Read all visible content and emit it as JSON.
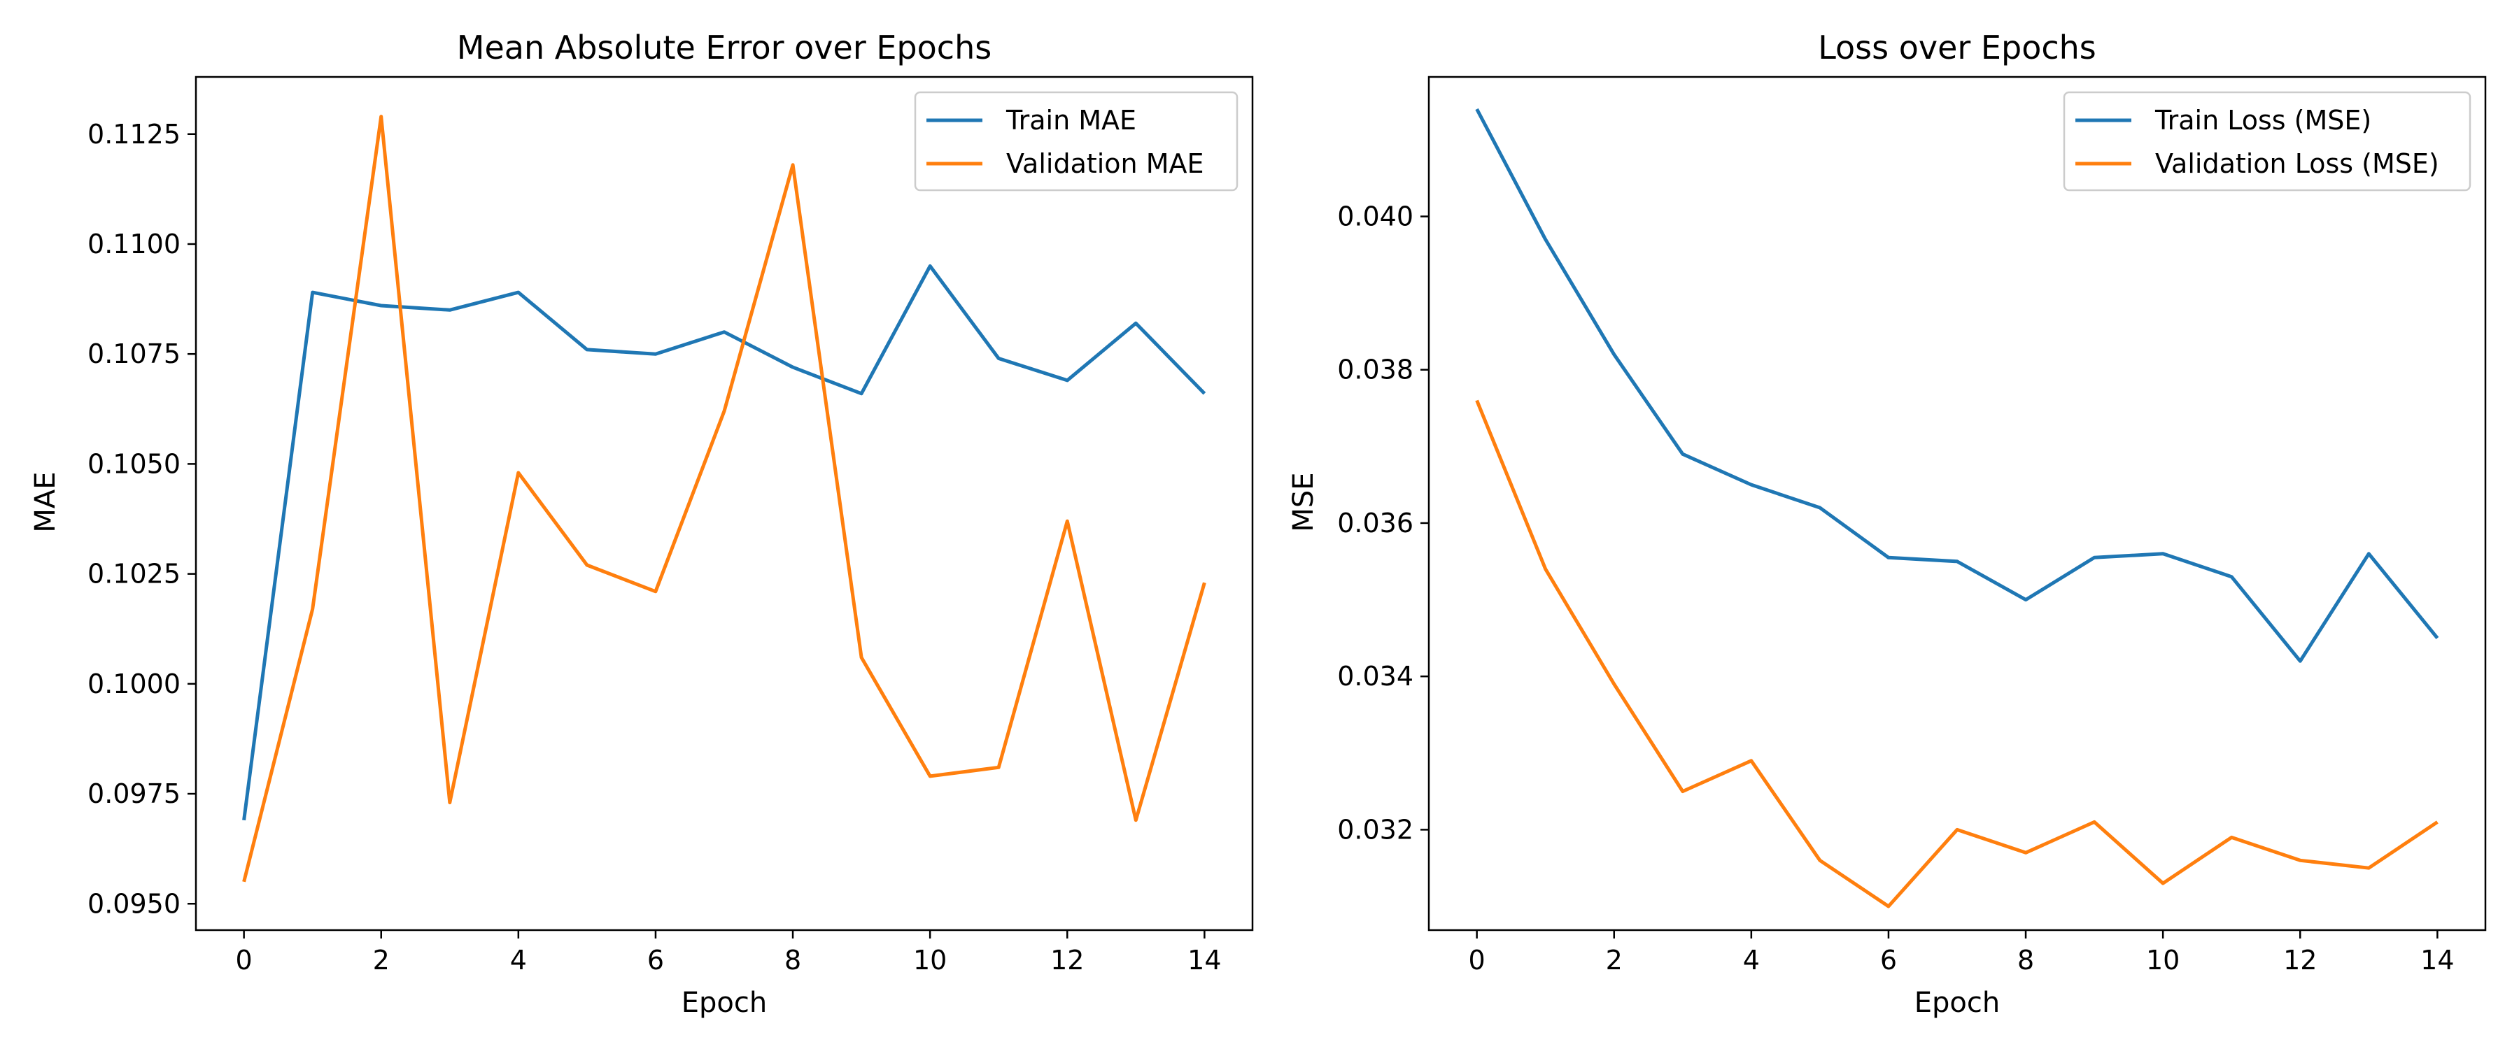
{
  "chart_data": [
    {
      "type": "line",
      "title": "Mean Absolute Error over Epochs",
      "xlabel": "Epoch",
      "ylabel": "MAE",
      "x": [
        0,
        1,
        2,
        3,
        4,
        5,
        6,
        7,
        8,
        9,
        10,
        11,
        12,
        13,
        14
      ],
      "xlim": [
        -0.7,
        14.7
      ],
      "ylim": [
        0.0944,
        0.1138
      ],
      "xticks": [
        0,
        2,
        4,
        6,
        8,
        10,
        12,
        14
      ],
      "xtick_labels": [
        "0",
        "2",
        "4",
        "6",
        "8",
        "10",
        "12",
        "14"
      ],
      "yticks": [
        0.095,
        0.0975,
        0.1,
        0.1025,
        0.105,
        0.1075,
        0.11,
        0.1125
      ],
      "ytick_labels": [
        "0.0950",
        "0.0975",
        "0.1000",
        "0.1025",
        "0.1050",
        "0.1075",
        "0.1100",
        "0.1125"
      ],
      "grid": false,
      "legend_position": "top-right",
      "series": [
        {
          "name": "Train MAE",
          "color": "#1f77b4",
          "values": [
            0.0969,
            0.1089,
            0.1086,
            0.1085,
            0.1089,
            0.1076,
            0.1075,
            0.108,
            0.1072,
            0.1066,
            0.1095,
            0.1074,
            0.1069,
            0.1082,
            0.1066
          ]
        },
        {
          "name": "Validation MAE",
          "color": "#ff7f0e",
          "values": [
            0.0955,
            0.1017,
            0.1129,
            0.0973,
            0.1048,
            0.1027,
            0.1021,
            0.1062,
            0.1118,
            0.1006,
            0.0979,
            0.0981,
            0.1037,
            0.0969,
            0.1023
          ]
        }
      ]
    },
    {
      "type": "line",
      "title": "Loss over Epochs",
      "xlabel": "Epoch",
      "ylabel": "MSE",
      "x": [
        0,
        1,
        2,
        3,
        4,
        5,
        6,
        7,
        8,
        9,
        10,
        11,
        12,
        13,
        14
      ],
      "xlim": [
        -0.7,
        14.7
      ],
      "ylim": [
        0.03069,
        0.04182
      ],
      "xticks": [
        0,
        2,
        4,
        6,
        8,
        10,
        12,
        14
      ],
      "xtick_labels": [
        "0",
        "2",
        "4",
        "6",
        "8",
        "10",
        "12",
        "14"
      ],
      "yticks": [
        0.032,
        0.034,
        0.036,
        0.038,
        0.04
      ],
      "ytick_labels": [
        "0.032",
        "0.034",
        "0.036",
        "0.038",
        "0.040"
      ],
      "grid": false,
      "legend_position": "top-right",
      "series": [
        {
          "name": "Train Loss (MSE)",
          "color": "#1f77b4",
          "values": [
            0.0414,
            0.0397,
            0.0382,
            0.0369,
            0.0365,
            0.0362,
            0.03555,
            0.0355,
            0.035,
            0.03555,
            0.0356,
            0.0353,
            0.0342,
            0.0356,
            0.0345
          ]
        },
        {
          "name": "Validation Loss (MSE)",
          "color": "#ff7f0e",
          "values": [
            0.0376,
            0.0354,
            0.0339,
            0.0325,
            0.0329,
            0.0316,
            0.031,
            0.032,
            0.0317,
            0.0321,
            0.0313,
            0.0319,
            0.0316,
            0.0315,
            0.0321
          ]
        }
      ]
    }
  ]
}
